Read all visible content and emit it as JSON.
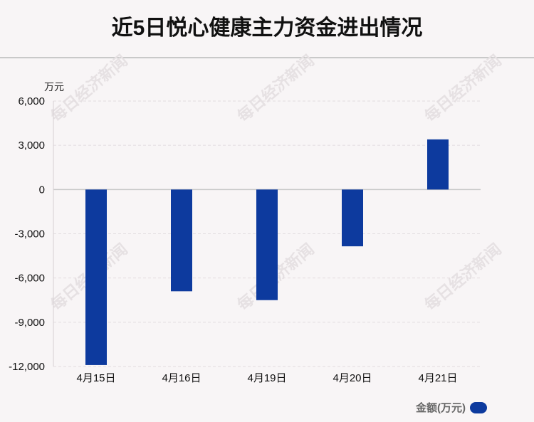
{
  "title": "近5日悦心健康主力资金进出情况",
  "unit_label": "万元",
  "watermark": "每日经济新闻",
  "legend": {
    "label": "金额(万元)",
    "color": "#0d3a9e"
  },
  "chart_data": {
    "type": "bar",
    "categories": [
      "4月15日",
      "4月16日",
      "4月19日",
      "4月20日",
      "4月21日"
    ],
    "series": [
      {
        "name": "金额(万元)",
        "values": [
          -11900,
          -6900,
          -7500,
          -3850,
          3400
        ]
      }
    ],
    "ylim": [
      -12000,
      6000
    ],
    "yticks": [
      6000,
      3000,
      0,
      -3000,
      -6000,
      -9000,
      -12000
    ],
    "ytick_labels": [
      "6,000",
      "3,000",
      "0",
      "-3,000",
      "-6,000",
      "-9,000",
      "-12,000"
    ],
    "grid": true,
    "bar_color": "#0d3a9e",
    "legend_position": "bottom-right"
  }
}
